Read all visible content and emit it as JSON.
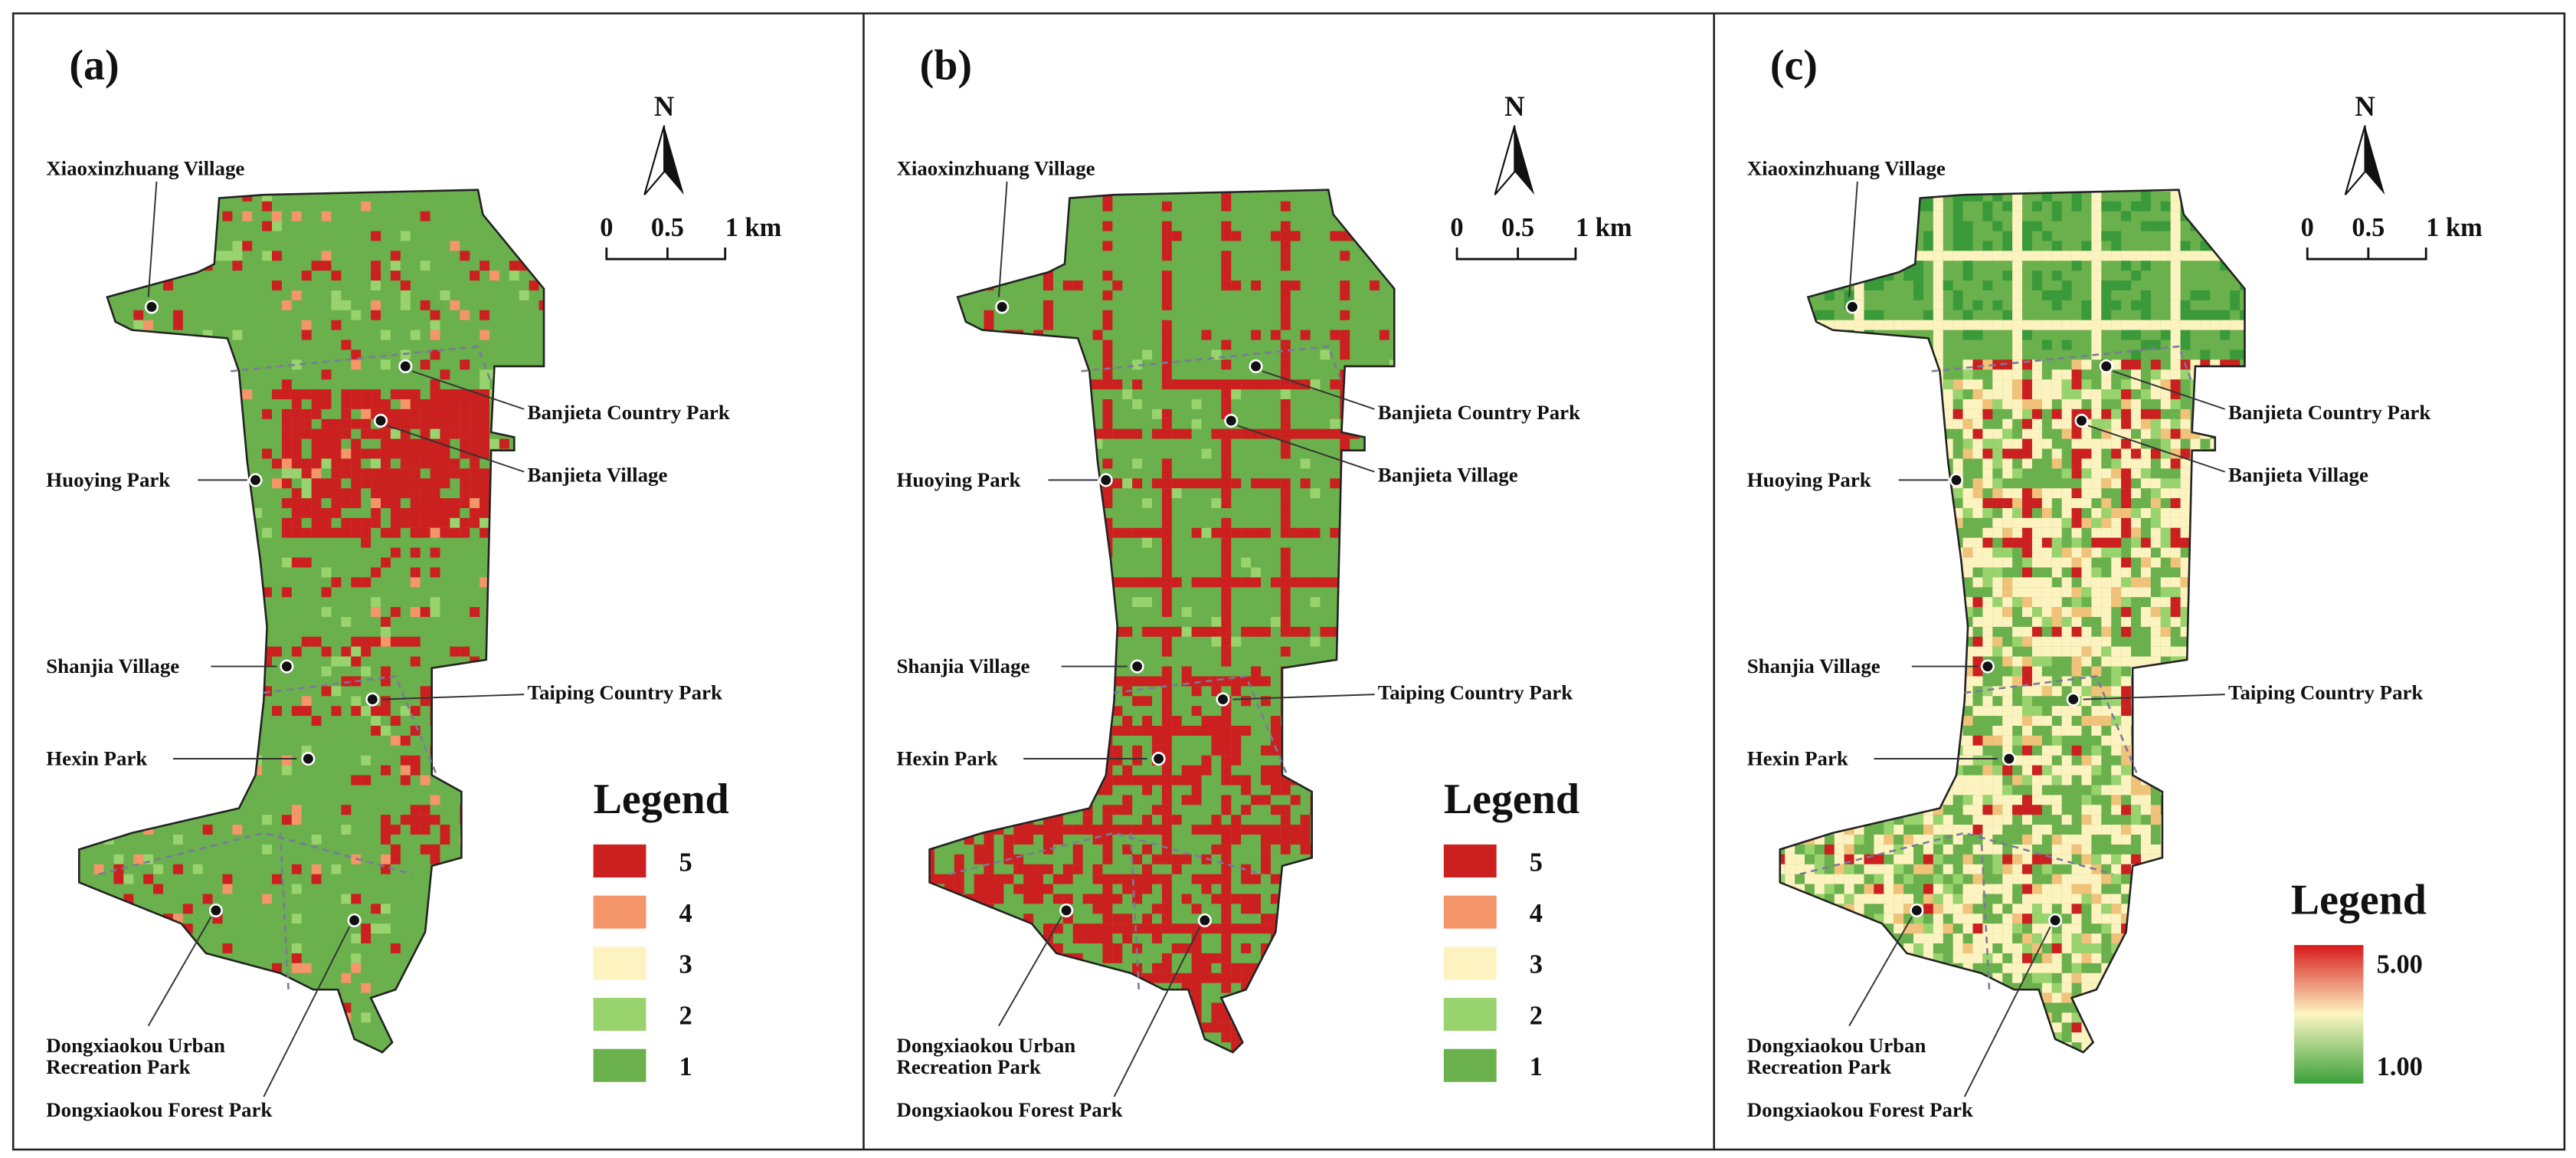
{
  "panels": [
    {
      "label": "(a)",
      "north": "N",
      "scale": [
        "0",
        "0.5",
        "1 km"
      ],
      "places": [
        {
          "lines": [
            "Xiaoxinzhuang Village"
          ]
        },
        {
          "lines": [
            "Banjieta Country Park"
          ]
        },
        {
          "lines": [
            "Banjieta Village"
          ]
        },
        {
          "lines": [
            "Huoying Park"
          ]
        },
        {
          "lines": [
            "Shanjia Village"
          ]
        },
        {
          "lines": [
            "Taiping Country Park"
          ]
        },
        {
          "lines": [
            "Hexin Park"
          ]
        },
        {
          "lines": [
            "Dongxiaokou Urban",
            "Recreation Park"
          ]
        },
        {
          "lines": [
            "Dongxiaokou Forest Park"
          ]
        }
      ],
      "legend": {
        "title": "Legend",
        "items": [
          {
            "label": "5",
            "color": "#cc1f1f"
          },
          {
            "label": "4",
            "color": "#f4956a"
          },
          {
            "label": "3",
            "color": "#fdf3c0"
          },
          {
            "label": "2",
            "color": "#98d36e"
          },
          {
            "label": "1",
            "color": "#6ab04c"
          }
        ]
      }
    },
    {
      "label": "(b)",
      "north": "N",
      "scale": [
        "0",
        "0.5",
        "1 km"
      ],
      "places": [
        {
          "lines": [
            "Xiaoxinzhuang Village"
          ]
        },
        {
          "lines": [
            "Banjieta Country Park"
          ]
        },
        {
          "lines": [
            "Banjieta Village"
          ]
        },
        {
          "lines": [
            "Huoying Park"
          ]
        },
        {
          "lines": [
            "Shanjia Village"
          ]
        },
        {
          "lines": [
            "Taiping Country Park"
          ]
        },
        {
          "lines": [
            "Hexin Park"
          ]
        },
        {
          "lines": [
            "Dongxiaokou Urban",
            "Recreation Park"
          ]
        },
        {
          "lines": [
            "Dongxiaokou Forest Park"
          ]
        }
      ],
      "legend": {
        "title": "Legend",
        "items": [
          {
            "label": "5",
            "color": "#cc1f1f"
          },
          {
            "label": "4",
            "color": "#f4956a"
          },
          {
            "label": "3",
            "color": "#fdf3c0"
          },
          {
            "label": "2",
            "color": "#98d36e"
          },
          {
            "label": "1",
            "color": "#6ab04c"
          }
        ]
      }
    },
    {
      "label": "(c)",
      "north": "N",
      "scale": [
        "0",
        "0.5",
        "1 km"
      ],
      "places": [
        {
          "lines": [
            "Xiaoxinzhuang Village"
          ]
        },
        {
          "lines": [
            "Banjieta Country Park"
          ]
        },
        {
          "lines": [
            "Banjieta Village"
          ]
        },
        {
          "lines": [
            "Huoying Park"
          ]
        },
        {
          "lines": [
            "Shanjia Village"
          ]
        },
        {
          "lines": [
            "Taiping Country Park"
          ]
        },
        {
          "lines": [
            "Hexin Park"
          ]
        },
        {
          "lines": [
            "Dongxiaokou Urban",
            "Recreation Park"
          ]
        },
        {
          "lines": [
            "Dongxiaokou Forest Park"
          ]
        }
      ],
      "legend": {
        "title": "Legend",
        "gradient": {
          "max": "5.00",
          "min": "1.00",
          "colors": [
            "#d7191c",
            "#fdf6c3",
            "#3aa03a"
          ]
        }
      }
    }
  ]
}
